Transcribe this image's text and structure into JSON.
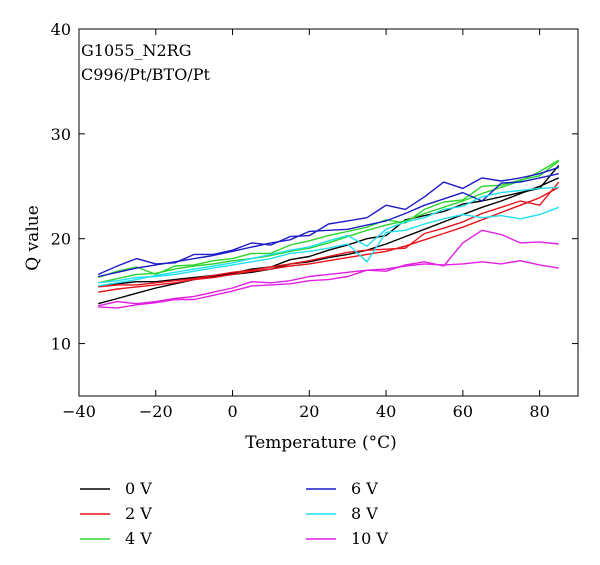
{
  "chart_data": {
    "type": "line",
    "title": "",
    "annotations": [
      "G1055_N2RG",
      "C996/Pt/BTO/Pt"
    ],
    "xlabel": "Temperature (°C)",
    "ylabel": "Q value",
    "xlim": [
      -40,
      90
    ],
    "ylim": [
      5,
      40
    ],
    "xticks": [
      -40,
      -20,
      0,
      20,
      40,
      60,
      80
    ],
    "yticks": [
      10,
      20,
      30,
      40
    ],
    "grid": false,
    "legend_position": "below",
    "series": [
      {
        "name": "0 V",
        "color": "#000000",
        "points": [
          [
            -35,
            15.5
          ],
          [
            -30,
            15.7
          ],
          [
            -25,
            15.9
          ],
          [
            -20,
            15.9
          ],
          [
            -15,
            16.1
          ],
          [
            -10,
            16.3
          ],
          [
            -5,
            16.5
          ],
          [
            0,
            16.6
          ],
          [
            5,
            16.8
          ],
          [
            10,
            17.1
          ],
          [
            15,
            17.6
          ],
          [
            20,
            17.8
          ],
          [
            25,
            18.2
          ],
          [
            30,
            18.5
          ],
          [
            35,
            18.9
          ],
          [
            40,
            19.5
          ],
          [
            45,
            20.2
          ],
          [
            50,
            20.9
          ],
          [
            55,
            21.6
          ],
          [
            60,
            22.3
          ],
          [
            65,
            23.0
          ],
          [
            70,
            23.6
          ],
          [
            75,
            24.3
          ],
          [
            80,
            25.0
          ],
          [
            85,
            25.8
          ]
        ]
      },
      {
        "name": "0 V",
        "color": "#000000",
        "points": [
          [
            -35,
            13.8
          ],
          [
            -30,
            14.3
          ],
          [
            -25,
            14.8
          ],
          [
            -20,
            15.3
          ],
          [
            -15,
            15.7
          ],
          [
            -10,
            16.1
          ],
          [
            -5,
            16.4
          ],
          [
            0,
            16.7
          ],
          [
            5,
            17.1
          ],
          [
            10,
            17.3
          ],
          [
            15,
            18.0
          ],
          [
            20,
            18.3
          ],
          [
            25,
            18.9
          ],
          [
            30,
            19.4
          ],
          [
            35,
            20.0
          ],
          [
            40,
            20.3
          ],
          [
            45,
            21.8
          ],
          [
            50,
            22.2
          ],
          [
            55,
            22.6
          ],
          [
            60,
            23.3
          ],
          [
            65,
            23.6
          ],
          [
            70,
            24.0
          ],
          [
            75,
            24.4
          ],
          [
            80,
            24.8
          ],
          [
            85,
            27.0
          ]
        ]
      },
      {
        "name": "2 V",
        "color": "#e8121b",
        "points": [
          [
            -35,
            14.9
          ],
          [
            -30,
            15.2
          ],
          [
            -25,
            15.4
          ],
          [
            -20,
            15.6
          ],
          [
            -15,
            15.8
          ],
          [
            -10,
            16.1
          ],
          [
            -5,
            16.3
          ],
          [
            0,
            16.6
          ],
          [
            5,
            16.9
          ],
          [
            10,
            17.1
          ],
          [
            15,
            17.4
          ],
          [
            20,
            17.6
          ],
          [
            25,
            17.9
          ],
          [
            30,
            18.2
          ],
          [
            35,
            18.5
          ],
          [
            40,
            18.8
          ],
          [
            45,
            19.3
          ],
          [
            50,
            19.9
          ],
          [
            55,
            20.5
          ],
          [
            60,
            21.1
          ],
          [
            65,
            21.8
          ],
          [
            70,
            22.5
          ],
          [
            75,
            23.2
          ],
          [
            80,
            23.9
          ],
          [
            85,
            24.9
          ]
        ]
      },
      {
        "name": "2 V",
        "color": "#e8121b",
        "points": [
          [
            -35,
            15.4
          ],
          [
            -30,
            15.6
          ],
          [
            -25,
            15.6
          ],
          [
            -20,
            15.8
          ],
          [
            -15,
            16.0
          ],
          [
            -10,
            16.2
          ],
          [
            -5,
            16.5
          ],
          [
            0,
            16.8
          ],
          [
            5,
            17.0
          ],
          [
            10,
            17.3
          ],
          [
            15,
            17.6
          ],
          [
            20,
            17.9
          ],
          [
            25,
            18.3
          ],
          [
            30,
            18.7
          ],
          [
            35,
            18.9
          ],
          [
            40,
            19.0
          ],
          [
            45,
            19.1
          ],
          [
            50,
            20.5
          ],
          [
            55,
            21.0
          ],
          [
            60,
            21.6
          ],
          [
            65,
            22.4
          ],
          [
            70,
            23.0
          ],
          [
            75,
            23.6
          ],
          [
            80,
            23.2
          ],
          [
            85,
            25.4
          ]
        ]
      },
      {
        "name": "4 V",
        "color": "#2bd42b",
        "points": [
          [
            -35,
            15.8
          ],
          [
            -30,
            16.2
          ],
          [
            -25,
            16.6
          ],
          [
            -20,
            16.7
          ],
          [
            -15,
            17.1
          ],
          [
            -10,
            17.4
          ],
          [
            -5,
            17.6
          ],
          [
            0,
            17.9
          ],
          [
            5,
            18.1
          ],
          [
            10,
            18.4
          ],
          [
            15,
            18.8
          ],
          [
            20,
            19.1
          ],
          [
            25,
            19.6
          ],
          [
            30,
            20.2
          ],
          [
            35,
            20.8
          ],
          [
            40,
            21.3
          ],
          [
            45,
            21.7
          ],
          [
            50,
            22.4
          ],
          [
            55,
            23.0
          ],
          [
            60,
            23.6
          ],
          [
            65,
            24.3
          ],
          [
            70,
            24.9
          ],
          [
            75,
            25.5
          ],
          [
            80,
            26.4
          ],
          [
            85,
            27.5
          ]
        ]
      },
      {
        "name": "4 V",
        "color": "#2bd42b",
        "points": [
          [
            -35,
            16.3
          ],
          [
            -30,
            16.9
          ],
          [
            -25,
            17.3
          ],
          [
            -20,
            16.6
          ],
          [
            -15,
            17.4
          ],
          [
            -10,
            17.5
          ],
          [
            -5,
            17.9
          ],
          [
            0,
            18.1
          ],
          [
            5,
            18.6
          ],
          [
            10,
            18.6
          ],
          [
            15,
            19.4
          ],
          [
            20,
            19.8
          ],
          [
            25,
            20.3
          ],
          [
            30,
            20.7
          ],
          [
            35,
            21.1
          ],
          [
            40,
            21.8
          ],
          [
            45,
            21.5
          ],
          [
            50,
            22.8
          ],
          [
            55,
            23.5
          ],
          [
            60,
            23.7
          ],
          [
            65,
            25.0
          ],
          [
            70,
            25.1
          ],
          [
            75,
            25.6
          ],
          [
            80,
            26.0
          ],
          [
            85,
            27.4
          ]
        ]
      },
      {
        "name": "6 V",
        "color": "#1c1cc8",
        "points": [
          [
            -35,
            16.6
          ],
          [
            -30,
            17.4
          ],
          [
            -25,
            18.1
          ],
          [
            -20,
            17.6
          ],
          [
            -15,
            17.7
          ],
          [
            -10,
            18.5
          ],
          [
            -5,
            18.5
          ],
          [
            0,
            18.9
          ],
          [
            5,
            19.6
          ],
          [
            10,
            19.4
          ],
          [
            15,
            20.2
          ],
          [
            20,
            20.3
          ],
          [
            25,
            21.4
          ],
          [
            30,
            21.7
          ],
          [
            35,
            22.0
          ],
          [
            40,
            23.2
          ],
          [
            45,
            22.8
          ],
          [
            50,
            24.0
          ],
          [
            55,
            25.4
          ],
          [
            60,
            24.8
          ],
          [
            65,
            25.8
          ],
          [
            70,
            25.5
          ],
          [
            75,
            25.8
          ],
          [
            80,
            26.2
          ],
          [
            85,
            26.8
          ]
        ]
      },
      {
        "name": "6 V",
        "color": "#1c1cc8",
        "points": [
          [
            -35,
            16.4
          ],
          [
            -30,
            16.8
          ],
          [
            -25,
            17.2
          ],
          [
            -20,
            17.5
          ],
          [
            -15,
            17.8
          ],
          [
            -10,
            18.1
          ],
          [
            -5,
            18.4
          ],
          [
            0,
            18.8
          ],
          [
            5,
            19.2
          ],
          [
            10,
            19.6
          ],
          [
            15,
            19.9
          ],
          [
            20,
            20.7
          ],
          [
            25,
            20.8
          ],
          [
            30,
            20.9
          ],
          [
            35,
            21.3
          ],
          [
            40,
            21.7
          ],
          [
            45,
            22.4
          ],
          [
            50,
            23.2
          ],
          [
            55,
            23.8
          ],
          [
            60,
            24.4
          ],
          [
            65,
            23.6
          ],
          [
            70,
            25.3
          ],
          [
            75,
            25.4
          ],
          [
            80,
            25.8
          ],
          [
            85,
            26.2
          ]
        ]
      },
      {
        "name": "8 V",
        "color": "#1ee0ee",
        "points": [
          [
            -35,
            15.8
          ],
          [
            -30,
            16.0
          ],
          [
            -25,
            16.3
          ],
          [
            -20,
            16.4
          ],
          [
            -15,
            16.6
          ],
          [
            -10,
            16.9
          ],
          [
            -5,
            17.2
          ],
          [
            0,
            17.5
          ],
          [
            5,
            17.8
          ],
          [
            10,
            18.1
          ],
          [
            15,
            18.6
          ],
          [
            20,
            18.8
          ],
          [
            25,
            19.1
          ],
          [
            30,
            19.5
          ],
          [
            35,
            17.8
          ],
          [
            40,
            20.6
          ],
          [
            45,
            20.8
          ],
          [
            50,
            21.4
          ],
          [
            55,
            21.9
          ],
          [
            60,
            22.3
          ],
          [
            65,
            22.0
          ],
          [
            70,
            22.2
          ],
          [
            75,
            21.9
          ],
          [
            80,
            22.3
          ],
          [
            85,
            23.0
          ]
        ]
      },
      {
        "name": "8 V",
        "color": "#1ee0ee",
        "points": [
          [
            -35,
            15.5
          ],
          [
            -30,
            15.8
          ],
          [
            -25,
            16.1
          ],
          [
            -20,
            16.5
          ],
          [
            -15,
            16.8
          ],
          [
            -10,
            17.1
          ],
          [
            -5,
            17.4
          ],
          [
            0,
            17.7
          ],
          [
            5,
            18.1
          ],
          [
            10,
            18.5
          ],
          [
            15,
            18.9
          ],
          [
            20,
            19.2
          ],
          [
            25,
            19.8
          ],
          [
            30,
            20.3
          ],
          [
            35,
            19.3
          ],
          [
            40,
            20.9
          ],
          [
            45,
            21.6
          ],
          [
            50,
            22.0
          ],
          [
            55,
            22.8
          ],
          [
            60,
            23.1
          ],
          [
            65,
            24.0
          ],
          [
            70,
            24.4
          ],
          [
            75,
            24.6
          ],
          [
            80,
            24.8
          ],
          [
            85,
            24.9
          ]
        ]
      },
      {
        "name": "10 V",
        "color": "#e31ee3",
        "points": [
          [
            -35,
            13.5
          ],
          [
            -30,
            13.4
          ],
          [
            -25,
            13.7
          ],
          [
            -20,
            13.9
          ],
          [
            -15,
            14.2
          ],
          [
            -10,
            14.2
          ],
          [
            -5,
            14.6
          ],
          [
            0,
            15.0
          ],
          [
            5,
            15.5
          ],
          [
            10,
            15.6
          ],
          [
            15,
            15.7
          ],
          [
            20,
            16.0
          ],
          [
            25,
            16.1
          ],
          [
            30,
            16.4
          ],
          [
            35,
            17.0
          ],
          [
            40,
            16.9
          ],
          [
            45,
            17.5
          ],
          [
            50,
            17.8
          ],
          [
            55,
            17.4
          ],
          [
            60,
            19.6
          ],
          [
            65,
            20.8
          ],
          [
            70,
            20.4
          ],
          [
            75,
            19.6
          ],
          [
            80,
            19.7
          ],
          [
            85,
            19.5
          ]
        ]
      },
      {
        "name": "10 V",
        "color": "#e31ee3",
        "points": [
          [
            -35,
            13.6
          ],
          [
            -30,
            14.0
          ],
          [
            -25,
            13.8
          ],
          [
            -20,
            14.0
          ],
          [
            -15,
            14.3
          ],
          [
            -10,
            14.5
          ],
          [
            -5,
            14.9
          ],
          [
            0,
            15.3
          ],
          [
            5,
            15.9
          ],
          [
            10,
            15.8
          ],
          [
            15,
            16.0
          ],
          [
            20,
            16.4
          ],
          [
            25,
            16.6
          ],
          [
            30,
            16.8
          ],
          [
            35,
            17.0
          ],
          [
            40,
            17.1
          ],
          [
            45,
            17.4
          ],
          [
            50,
            17.6
          ],
          [
            55,
            17.5
          ],
          [
            60,
            17.6
          ],
          [
            65,
            17.8
          ],
          [
            70,
            17.6
          ],
          [
            75,
            17.9
          ],
          [
            80,
            17.5
          ],
          [
            85,
            17.2
          ]
        ]
      }
    ],
    "legend": [
      {
        "label": "0 V",
        "color": "#000000"
      },
      {
        "label": "6 V",
        "color": "#1c1cc8"
      },
      {
        "label": "2 V",
        "color": "#e8121b"
      },
      {
        "label": "8 V",
        "color": "#1ee0ee"
      },
      {
        "label": "4 V",
        "color": "#2bd42b"
      },
      {
        "label": "10 V",
        "color": "#e31ee3"
      }
    ]
  }
}
